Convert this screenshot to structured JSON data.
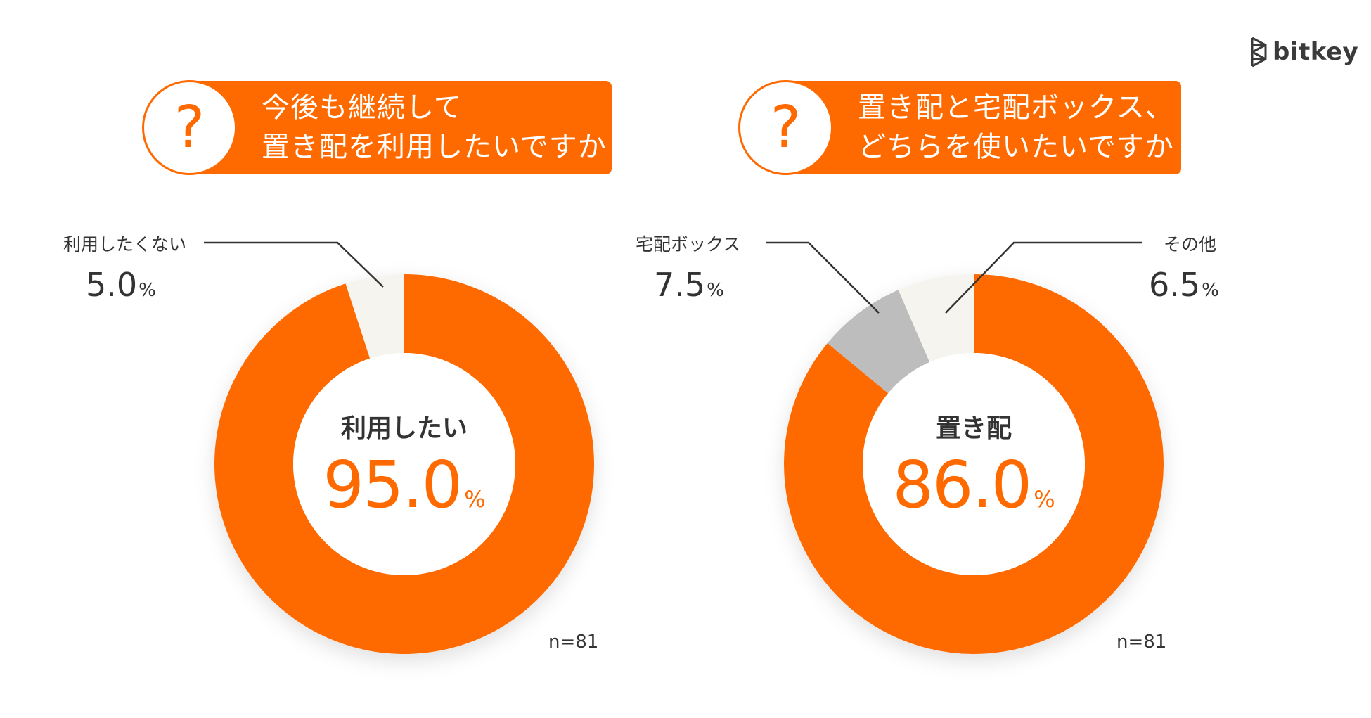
{
  "brand": {
    "name": "bitkey"
  },
  "colors": {
    "accent": "#FF6A00",
    "grey": "#BDBDBD",
    "cream": "#F6F4EE",
    "text": "#333333"
  },
  "chart_data": [
    {
      "type": "pie",
      "style": "donut",
      "title": [
        "今後も継続して",
        "置き配を利用したいですか"
      ],
      "question_mark": "?",
      "labels": [
        "利用したい",
        "利用したくない"
      ],
      "values": [
        95.0,
        5.0
      ],
      "value_labels": [
        "95.0",
        "5.0"
      ],
      "unit": "%",
      "center_label": "利用したい",
      "n": "n=81"
    },
    {
      "type": "pie",
      "style": "donut",
      "title": [
        "置き配と宅配ボックス、",
        "どちらを使いたいですか"
      ],
      "question_mark": "?",
      "labels": [
        "置き配",
        "宅配ボックス",
        "その他"
      ],
      "values": [
        86.0,
        7.5,
        6.5
      ],
      "value_labels": [
        "86.0",
        "7.5",
        "6.5"
      ],
      "unit": "%",
      "center_label": "置き配",
      "n": "n=81"
    }
  ]
}
